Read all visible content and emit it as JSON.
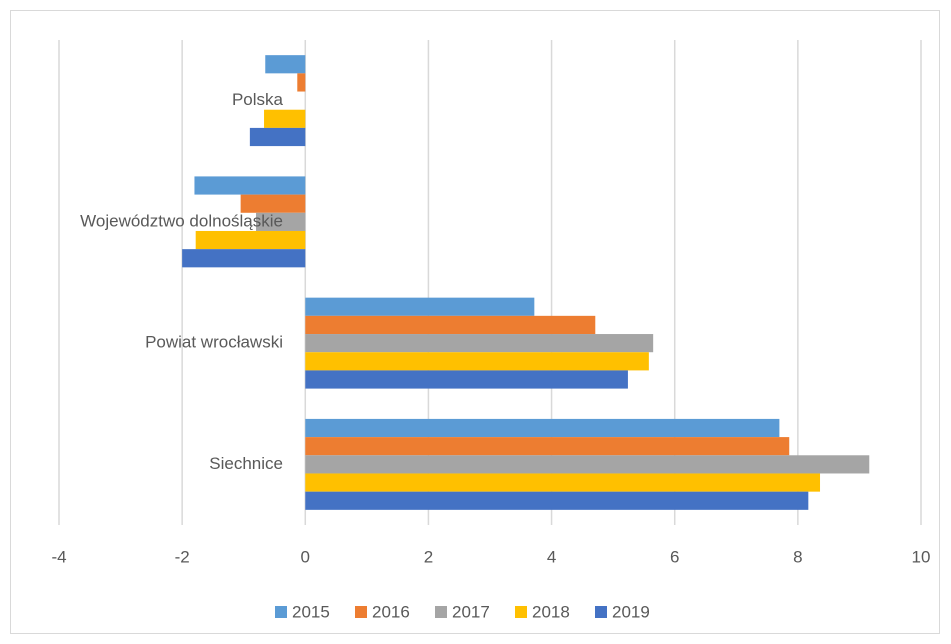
{
  "chart_data": {
    "type": "bar",
    "orientation": "horizontal",
    "categories": [
      "Polska",
      "Województwo dolnośląskie",
      "Powiat wrocławski",
      "Siechnice"
    ],
    "series": [
      {
        "name": "2015",
        "color": "#5b9bd5",
        "values": [
          -0.65,
          -1.8,
          3.72,
          7.7
        ]
      },
      {
        "name": "2016",
        "color": "#ed7d31",
        "values": [
          -0.13,
          -1.05,
          4.71,
          7.86
        ]
      },
      {
        "name": "2017",
        "color": "#a5a5a5",
        "values": [
          0,
          -0.8,
          5.65,
          9.16
        ]
      },
      {
        "name": "2018",
        "color": "#ffc000",
        "values": [
          -0.67,
          -1.78,
          5.58,
          8.36
        ]
      },
      {
        "name": "2019",
        "color": "#4472c4",
        "values": [
          -0.9,
          -2.0,
          5.24,
          8.17
        ]
      }
    ],
    "xlim": [
      -4,
      10
    ],
    "xticks": [
      -4,
      -2,
      0,
      2,
      4,
      6,
      8,
      10
    ],
    "grid": true,
    "legend": "bottom"
  }
}
